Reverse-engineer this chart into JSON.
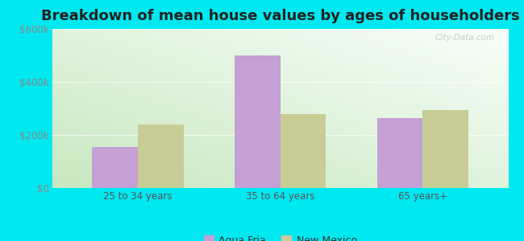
{
  "title": "Breakdown of mean house values by ages of householders",
  "categories": [
    "25 to 34 years",
    "35 to 64 years",
    "65 years+"
  ],
  "agua_fria": [
    155000,
    500000,
    265000
  ],
  "new_mexico": [
    240000,
    278000,
    295000
  ],
  "bar_color_agua": "#c4a0d4",
  "bar_color_nm": "#c8cc96",
  "ylim": [
    0,
    600000
  ],
  "yticks": [
    0,
    200000,
    400000,
    600000
  ],
  "ytick_labels": [
    "$0",
    "$200k",
    "$400k",
    "$600k"
  ],
  "legend_agua": "Agua Fria",
  "legend_nm": "New Mexico",
  "bg_outer": "#00e8f0",
  "title_fontsize": 13,
  "bar_width": 0.32
}
